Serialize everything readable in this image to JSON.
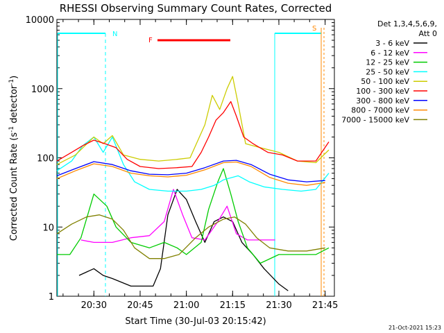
{
  "chart_data": {
    "type": "line",
    "title": "RHESSI Observing Summary Count Rates, Corrected",
    "xlabel": "Start Time (30-Jul-03 20:15:42)",
    "ylabel_main": "Corrected Count Rate (s",
    "ylabel_exp": "-1",
    "ylabel_tail": " detector",
    "ylabel_end": ")",
    "yscale": "log",
    "ylim": [
      1,
      10000
    ],
    "xlim_minutes": [
      20.3,
      21.8
    ],
    "x_ticks": [
      {
        "label": "20:30",
        "value": 20.5
      },
      {
        "label": "20:45",
        "value": 20.75
      },
      {
        "label": "21:00",
        "value": 21.0
      },
      {
        "label": "21:15",
        "value": 21.25
      },
      {
        "label": "21:30",
        "value": 21.5
      },
      {
        "label": "21:45",
        "value": 21.75
      }
    ],
    "y_ticks": [
      {
        "label": "1",
        "value": 1
      },
      {
        "label": "10",
        "value": 10
      },
      {
        "label": "100",
        "value": 100
      },
      {
        "label": "1000",
        "value": 1000
      },
      {
        "label": "10000",
        "value": 10000
      }
    ],
    "legend_header": [
      "Det 1,3,4,5,6,9,",
      "Att 0"
    ],
    "legend_position": "right",
    "series": [
      {
        "name": "3 - 6 keV",
        "color": "#000000",
        "points": [
          [
            20.42,
            2
          ],
          [
            20.5,
            2.5
          ],
          [
            20.55,
            2
          ],
          [
            20.6,
            1.8
          ],
          [
            20.7,
            1.4
          ],
          [
            20.82,
            1.4
          ],
          [
            20.86,
            2.5
          ],
          [
            20.9,
            15
          ],
          [
            20.95,
            35
          ],
          [
            21.0,
            25
          ],
          [
            21.05,
            12
          ],
          [
            21.1,
            6
          ],
          [
            21.15,
            12
          ],
          [
            21.2,
            14
          ],
          [
            21.25,
            12
          ],
          [
            21.3,
            6
          ],
          [
            21.36,
            4
          ],
          [
            21.42,
            2.5
          ],
          [
            21.5,
            1.5
          ],
          [
            21.55,
            1.2
          ]
        ]
      },
      {
        "name": "6 - 12 keV",
        "color": "#ff00ff",
        "points": [
          [
            20.43,
            6.5
          ],
          [
            20.5,
            6
          ],
          [
            20.6,
            6
          ],
          [
            20.7,
            7
          ],
          [
            20.8,
            7.5
          ],
          [
            20.88,
            12
          ],
          [
            20.93,
            35
          ],
          [
            20.98,
            15
          ],
          [
            21.03,
            7
          ],
          [
            21.1,
            6.5
          ],
          [
            21.17,
            12
          ],
          [
            21.22,
            20
          ],
          [
            21.27,
            8
          ],
          [
            21.33,
            6.5
          ],
          [
            21.42,
            6.5
          ],
          [
            21.48,
            6.5
          ]
        ]
      },
      {
        "name": "12 - 25 keV",
        "color": "#00cc00",
        "points": [
          [
            20.3,
            4
          ],
          [
            20.37,
            4
          ],
          [
            20.43,
            7
          ],
          [
            20.5,
            30
          ],
          [
            20.57,
            20
          ],
          [
            20.62,
            10
          ],
          [
            20.7,
            6
          ],
          [
            20.8,
            5
          ],
          [
            20.88,
            6
          ],
          [
            20.95,
            5
          ],
          [
            21.0,
            4
          ],
          [
            21.08,
            6
          ],
          [
            21.12,
            18
          ],
          [
            21.17,
            45
          ],
          [
            21.2,
            70
          ],
          [
            21.24,
            30
          ],
          [
            21.28,
            12
          ],
          [
            21.33,
            5
          ],
          [
            21.4,
            3
          ],
          [
            21.5,
            4
          ],
          [
            21.6,
            4
          ],
          [
            21.7,
            4
          ],
          [
            21.77,
            5
          ]
        ]
      },
      {
        "name": "25 - 50 keV",
        "color": "#00ffff",
        "points": [
          [
            20.3,
            65
          ],
          [
            20.38,
            90
          ],
          [
            20.44,
            150
          ],
          [
            20.5,
            200
          ],
          [
            20.55,
            120
          ],
          [
            20.6,
            200
          ],
          [
            20.66,
            80
          ],
          [
            20.72,
            45
          ],
          [
            20.8,
            35
          ],
          [
            20.9,
            33
          ],
          [
            21.0,
            33
          ],
          [
            21.08,
            35
          ],
          [
            21.15,
            40
          ],
          [
            21.2,
            48
          ],
          [
            21.28,
            55
          ],
          [
            21.34,
            45
          ],
          [
            21.42,
            38
          ],
          [
            21.52,
            35
          ],
          [
            21.62,
            33
          ],
          [
            21.7,
            35
          ],
          [
            21.77,
            60
          ]
        ]
      },
      {
        "name": "50 - 100 keV",
        "color": "#cccc00",
        "points": [
          [
            20.3,
            80
          ],
          [
            20.4,
            110
          ],
          [
            20.5,
            200
          ],
          [
            20.55,
            160
          ],
          [
            20.6,
            210
          ],
          [
            20.66,
            110
          ],
          [
            20.75,
            95
          ],
          [
            20.85,
            90
          ],
          [
            20.95,
            95
          ],
          [
            21.02,
            100
          ],
          [
            21.1,
            300
          ],
          [
            21.14,
            800
          ],
          [
            21.18,
            500
          ],
          [
            21.22,
            1000
          ],
          [
            21.25,
            1500
          ],
          [
            21.28,
            600
          ],
          [
            21.32,
            160
          ],
          [
            21.4,
            140
          ],
          [
            21.5,
            120
          ],
          [
            21.6,
            90
          ],
          [
            21.7,
            85
          ],
          [
            21.77,
            130
          ]
        ]
      },
      {
        "name": "100 - 300 keV",
        "color": "#ff0000",
        "points": [
          [
            20.3,
            90
          ],
          [
            20.38,
            120
          ],
          [
            20.44,
            150
          ],
          [
            20.5,
            180
          ],
          [
            20.56,
            160
          ],
          [
            20.62,
            140
          ],
          [
            20.68,
            95
          ],
          [
            20.75,
            75
          ],
          [
            20.85,
            70
          ],
          [
            20.95,
            72
          ],
          [
            21.03,
            75
          ],
          [
            21.08,
            120
          ],
          [
            21.12,
            200
          ],
          [
            21.16,
            350
          ],
          [
            21.2,
            450
          ],
          [
            21.24,
            650
          ],
          [
            21.27,
            400
          ],
          [
            21.31,
            200
          ],
          [
            21.36,
            160
          ],
          [
            21.44,
            120
          ],
          [
            21.52,
            110
          ],
          [
            21.6,
            90
          ],
          [
            21.7,
            90
          ],
          [
            21.77,
            170
          ]
        ]
      },
      {
        "name": "300 - 800 keV",
        "color": "#0000ff",
        "points": [
          [
            20.3,
            55
          ],
          [
            20.4,
            70
          ],
          [
            20.5,
            88
          ],
          [
            20.6,
            80
          ],
          [
            20.7,
            65
          ],
          [
            20.8,
            58
          ],
          [
            20.9,
            57
          ],
          [
            21.0,
            60
          ],
          [
            21.1,
            72
          ],
          [
            21.2,
            90
          ],
          [
            21.27,
            92
          ],
          [
            21.35,
            80
          ],
          [
            21.45,
            58
          ],
          [
            21.55,
            48
          ],
          [
            21.65,
            45
          ],
          [
            21.75,
            47
          ]
        ]
      },
      {
        "name": "800 - 7000 keV",
        "color": "#ff8800",
        "points": [
          [
            20.3,
            50
          ],
          [
            20.4,
            65
          ],
          [
            20.5,
            82
          ],
          [
            20.6,
            75
          ],
          [
            20.7,
            60
          ],
          [
            20.8,
            55
          ],
          [
            20.9,
            53
          ],
          [
            21.0,
            56
          ],
          [
            21.1,
            67
          ],
          [
            21.2,
            85
          ],
          [
            21.27,
            87
          ],
          [
            21.35,
            75
          ],
          [
            21.45,
            52
          ],
          [
            21.55,
            43
          ],
          [
            21.65,
            40
          ],
          [
            21.75,
            44
          ]
        ]
      },
      {
        "name": "7000 - 15000 keV",
        "color": "#808000",
        "points": [
          [
            20.3,
            8
          ],
          [
            20.38,
            11
          ],
          [
            20.46,
            14
          ],
          [
            20.53,
            15
          ],
          [
            20.6,
            13
          ],
          [
            20.66,
            9
          ],
          [
            20.72,
            5
          ],
          [
            20.8,
            3.5
          ],
          [
            20.88,
            3.5
          ],
          [
            20.96,
            4
          ],
          [
            21.05,
            7
          ],
          [
            21.12,
            10
          ],
          [
            21.2,
            13
          ],
          [
            21.26,
            14
          ],
          [
            21.32,
            11
          ],
          [
            21.38,
            7
          ],
          [
            21.45,
            5
          ],
          [
            21.55,
            4.5
          ],
          [
            21.65,
            4.5
          ],
          [
            21.75,
            5
          ]
        ]
      }
    ],
    "annotations": [
      {
        "label": "N",
        "color": "#00ffff"
      },
      {
        "label": "F",
        "color": "#ff0000"
      },
      {
        "label": "S",
        "color": "#ff8800"
      }
    ],
    "timestamp": "21-Oct-2021 15:23"
  }
}
